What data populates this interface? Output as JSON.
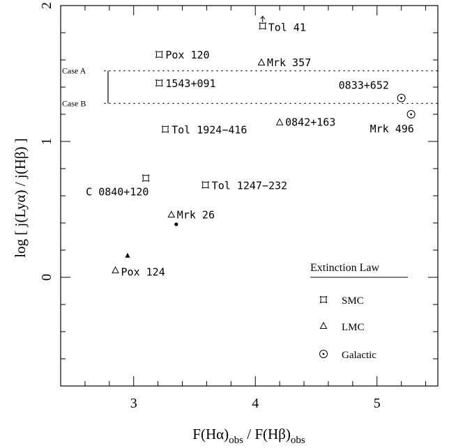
{
  "chart_data": {
    "type": "scatter",
    "xlabel": "F(Hα)obs / F(Hβ)obs",
    "ylabel": "log [ j(Lyα) / j(Hβ) ]",
    "xlim": [
      2.4,
      5.5
    ],
    "ylim": [
      -0.8,
      2.0
    ],
    "x_ticks": [
      3,
      4,
      5
    ],
    "y_ticks": [
      0,
      1,
      2
    ],
    "grid": false,
    "reference_lines": [
      {
        "label": "Case A",
        "y": 1.52
      },
      {
        "label": "Case B",
        "y": 1.28
      }
    ],
    "series": [
      {
        "name": "SMC",
        "marker": "square",
        "points": [
          {
            "label": "Tol 41",
            "x": 4.06,
            "y": 1.85,
            "arrow": "up"
          },
          {
            "label": "Pox 120",
            "x": 3.21,
            "y": 1.64
          },
          {
            "label": "1543+091",
            "x": 3.21,
            "y": 1.43
          },
          {
            "label": "Tol 1924−416",
            "x": 3.26,
            "y": 1.09
          },
          {
            "label": "C 0840+120",
            "x": 3.1,
            "y": 0.73
          },
          {
            "label": "Tol 1247−232",
            "x": 3.59,
            "y": 0.68
          }
        ]
      },
      {
        "name": "LMC",
        "marker": "triangle",
        "points": [
          {
            "label": "Mrk 357",
            "x": 4.05,
            "y": 1.58
          },
          {
            "label": "0842+163",
            "x": 4.2,
            "y": 1.14
          },
          {
            "label": "Mrk 26",
            "x": 3.31,
            "y": 0.46
          },
          {
            "label": "Pox 124",
            "x": 2.85,
            "y": 0.05
          }
        ]
      },
      {
        "name": "Galactic",
        "marker": "circle-dot",
        "points": [
          {
            "label": "0833+652",
            "x": 5.2,
            "y": 1.32
          },
          {
            "label": "Mrk 496",
            "x": 5.28,
            "y": 1.2
          }
        ]
      }
    ],
    "extra_marks": [
      {
        "marker": "filled-triangle",
        "x": 2.95,
        "y": 0.16
      },
      {
        "marker": "filled-dot",
        "x": 3.35,
        "y": 0.39
      }
    ],
    "legend": {
      "title": "Extinction Law",
      "position": "bottom-right"
    }
  },
  "labels": {
    "y_title": "log  [ j(Lyα) / j(Hβ) ]",
    "x_title_1": "F(Hα)",
    "x_sub_1": "obs",
    "x_title_2": " / F(Hβ)",
    "x_sub_2": "obs"
  }
}
